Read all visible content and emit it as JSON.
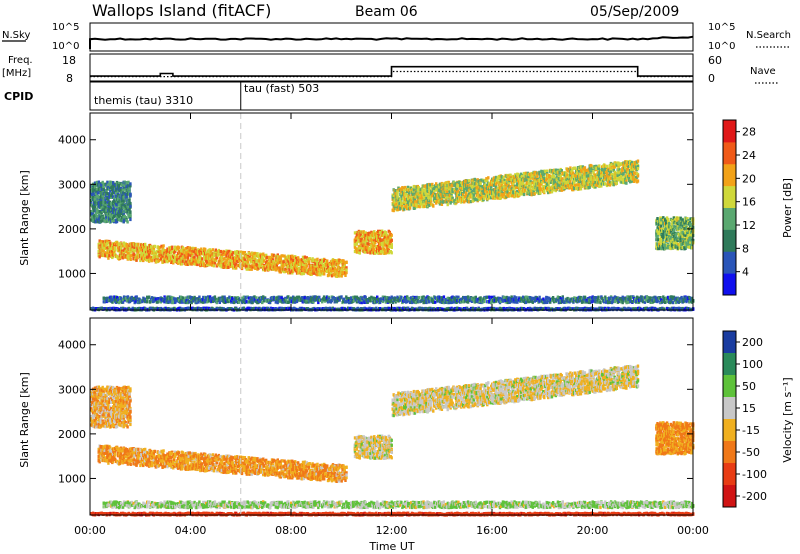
{
  "header": {
    "station": "Wallops Island (fitACF)",
    "beam": "Beam 06",
    "date": "05/Sep/2009"
  },
  "top_panels": {
    "nsky_label": "N.Sky",
    "nsearch_label": "N.Search",
    "noise_ticks": [
      "10^5",
      "10^0"
    ],
    "freq_label": "Freq.",
    "freq_unit": "[MHz]",
    "freq_ticks": [
      18,
      8
    ],
    "nave_label": "Nave",
    "nave_ticks": [
      60,
      0
    ],
    "cpid_label": "CPID",
    "cpid_modes": [
      {
        "name": "themis (tau) 3310",
        "start_hour": 0
      },
      {
        "name": "tau (fast) 503",
        "start_hour": 6
      }
    ]
  },
  "x_axis": {
    "label": "Time UT",
    "ticks": [
      "00:00",
      "04:00",
      "08:00",
      "12:00",
      "16:00",
      "20:00",
      "00:00"
    ],
    "range_hours": [
      0,
      24
    ]
  },
  "power_panel": {
    "ylabel": "Slant Range [km]",
    "yticks": [
      1000,
      2000,
      3000,
      4000
    ],
    "colorbar_label": "Power [dB]",
    "colorbar_ticks": [
      4,
      8,
      12,
      16,
      20,
      24,
      28
    ],
    "colorbar_range": [
      0,
      30
    ],
    "colors": [
      "#1010ee",
      "#2a55b8",
      "#2f7a5a",
      "#5aa870",
      "#cfd83a",
      "#f2a218",
      "#f05a18",
      "#e01818"
    ]
  },
  "velocity_panel": {
    "ylabel": "Slant Range [km]",
    "yticks": [
      1000,
      2000,
      3000,
      4000
    ],
    "colorbar_label": "Velocity [m s⁻¹]",
    "colorbar_ticks": [
      "200",
      "100",
      "50",
      "15",
      "-15",
      "-50",
      "-100",
      "-200"
    ],
    "colors": [
      "#1a3ca0",
      "#2a8a5a",
      "#5ec23a",
      "#c8c8c8",
      "#f0b020",
      "#f07818",
      "#e83c14",
      "#d01414"
    ]
  },
  "chart_data": {
    "type": "heatmap",
    "title": "Wallops Island (fitACF) Beam 06 05/Sep/2009",
    "xlabel": "Time UT",
    "ylabel": "Slant Range [km]",
    "xlim": [
      0,
      24
    ],
    "ylim": [
      180,
      4600
    ],
    "scatter_bands": [
      {
        "name": "E-region ground/sea scatter",
        "t_start": 0.5,
        "t_end": 24,
        "range_center": 410,
        "thickness": 130,
        "power": 8,
        "velocity": 30
      },
      {
        "name": "near-range echoes",
        "t_start": 0,
        "t_end": 24,
        "range_center": 200,
        "thickness": 40,
        "power": 6,
        "velocity": -120
      },
      {
        "name": "early high-range patch",
        "t_start": 0.0,
        "t_end": 1.6,
        "range_center": 2600,
        "thickness": 900,
        "power": 10,
        "velocity": -20
      },
      {
        "name": "descending F-band",
        "t_start": 0.3,
        "t_end": 10.2,
        "range_start": 1550,
        "range_end": 1100,
        "thickness": 380,
        "power": 20,
        "velocity": -30
      },
      {
        "name": "mid-night patch",
        "t_start": 10.5,
        "t_end": 12.0,
        "range_center": 1700,
        "thickness": 500,
        "power": 20,
        "velocity": 5
      },
      {
        "name": "rising F-band",
        "t_start": 12.0,
        "t_end": 21.8,
        "range_start": 2650,
        "range_end": 3300,
        "thickness": 500,
        "power": 17,
        "velocity": 5
      },
      {
        "name": "late-night patch",
        "t_start": 22.5,
        "t_end": 24.0,
        "range_center": 1900,
        "thickness": 700,
        "power": 14,
        "velocity": -40
      }
    ],
    "noise": {
      "nsky_level": "10^0",
      "nsearch_level": "10^0"
    },
    "frequency_MHz": [
      {
        "t": 0.0,
        "value": 10.3
      },
      {
        "t": 2.8,
        "value": 10.3
      },
      {
        "t": 2.8,
        "value": 11.8
      },
      {
        "t": 3.3,
        "value": 11.8
      },
      {
        "t": 3.3,
        "value": 10.3
      },
      {
        "t": 12.0,
        "value": 10.3
      },
      {
        "t": 12.0,
        "value": 15.8
      },
      {
        "t": 21.8,
        "value": 15.8
      },
      {
        "t": 21.8,
        "value": 10.3
      },
      {
        "t": 24.0,
        "value": 10.3
      }
    ],
    "nave": [
      {
        "t": 0.0,
        "value": 12
      },
      {
        "t": 12.0,
        "value": 12
      },
      {
        "t": 12.0,
        "value": 30
      },
      {
        "t": 21.8,
        "value": 30
      },
      {
        "t": 21.8,
        "value": 12
      },
      {
        "t": 24.0,
        "value": 12
      }
    ],
    "mode_change_hour": 6
  }
}
